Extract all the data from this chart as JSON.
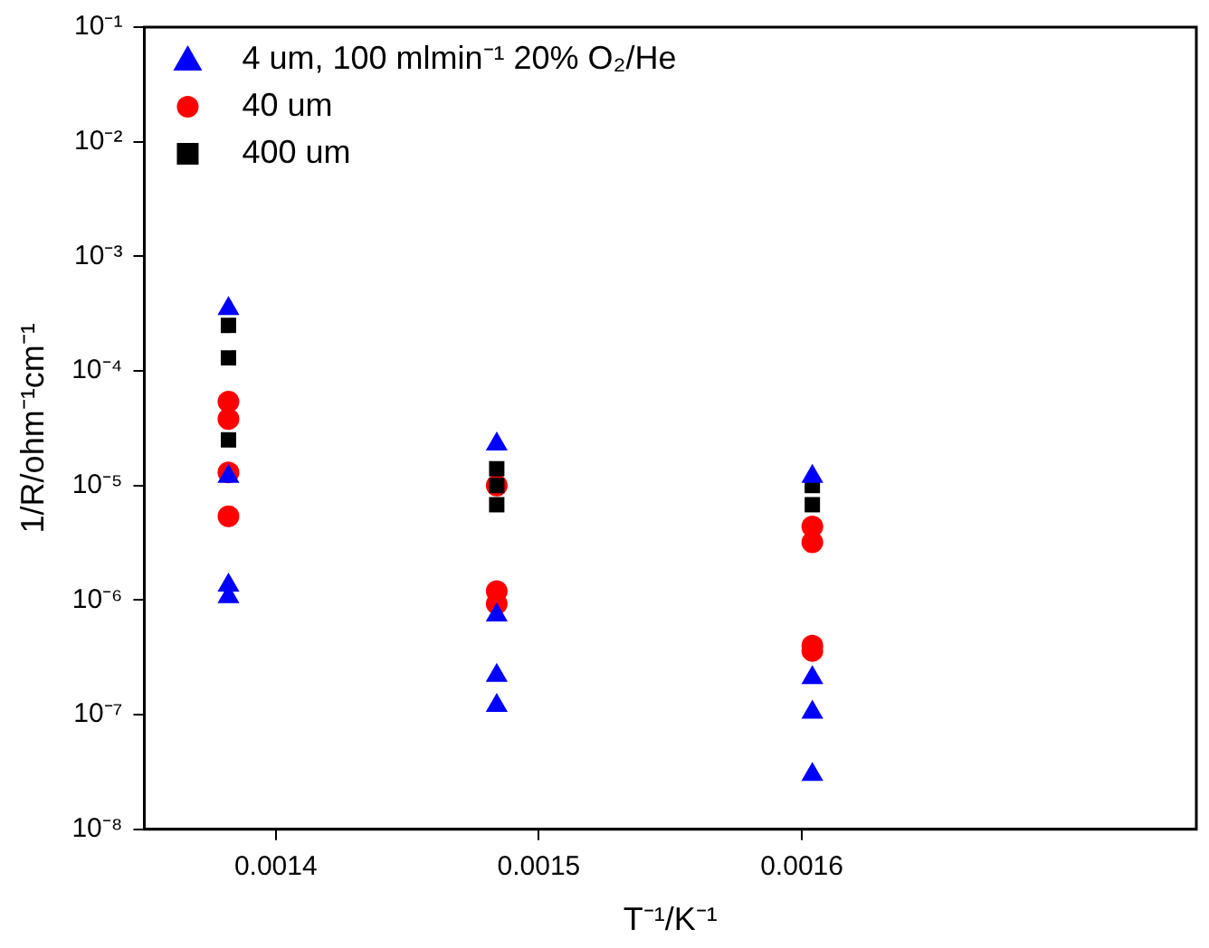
{
  "chart_data": {
    "type": "scatter",
    "xlabel": "T⁻¹/K⁻¹",
    "ylabel": "1/R/ohm⁻¹cm⁻¹",
    "log": "y",
    "grid": false,
    "legend": "top left",
    "xlim": [
      0.00135,
      0.00175
    ],
    "xticks": [
      0.0014,
      0.0015,
      0.0016
    ],
    "ylim": [
      1e-08,
      0.1
    ],
    "yticks": [
      {
        "value": 1e-08,
        "label": "10⁻⁸"
      },
      {
        "value": 1e-07,
        "label": "10⁻⁷"
      },
      {
        "value": 1e-06,
        "label": "10⁻⁶"
      },
      {
        "value": 1e-05,
        "label": "10⁻⁵"
      },
      {
        "value": 0.0001,
        "label": "10⁻⁴"
      },
      {
        "value": 0.001,
        "label": "10⁻³"
      },
      {
        "value": 0.01,
        "label": "10⁻²"
      },
      {
        "value": 0.1,
        "label": "10⁻¹"
      }
    ],
    "series": [
      {
        "name": "4 um, 100 mlmin⁻¹ 20% O₂/He",
        "color": "#0000ff",
        "marker": "triangle",
        "x": [
          0.001382,
          0.001382,
          0.001382,
          0.001382,
          0.001484,
          0.001484,
          0.001484,
          0.001484,
          0.001604,
          0.001604,
          0.001604,
          0.001604
        ],
        "values": [
          0.00035,
          1.2e-05,
          1.35e-06,
          1.07e-06,
          2.3e-05,
          7.4e-07,
          2.2e-07,
          1.2e-07,
          1.2e-05,
          2.1e-07,
          1.05e-07,
          3e-08
        ]
      },
      {
        "name": "40 um",
        "color": "#ff0000",
        "marker": "circle",
        "x": [
          0.001382,
          0.001382,
          0.001382,
          0.001382,
          0.001484,
          0.001484,
          0.001484,
          0.001604,
          0.001604,
          0.001604,
          0.001604
        ],
        "values": [
          5.4e-05,
          3.8e-05,
          1.3e-05,
          5.4e-06,
          1e-05,
          1.2e-06,
          9.3e-07,
          4.4e-06,
          3.2e-06,
          4e-07,
          3.6e-07
        ]
      },
      {
        "name": "400 um",
        "color": "#000000",
        "marker": "square",
        "x": [
          0.001382,
          0.001382,
          0.001382,
          0.001484,
          0.001484,
          0.001484,
          0.001604,
          0.001604
        ],
        "values": [
          0.00025,
          0.00013,
          2.5e-05,
          1.4e-05,
          1e-05,
          6.8e-06,
          1e-05,
          6.8e-06
        ]
      }
    ]
  }
}
